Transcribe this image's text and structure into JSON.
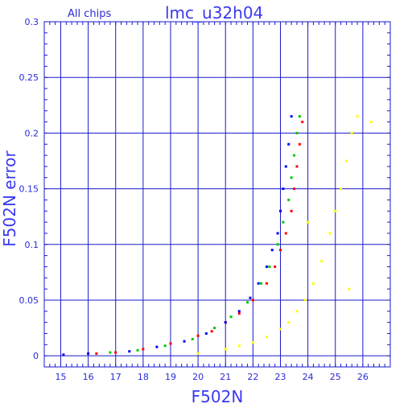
{
  "chart_data": {
    "type": "scatter",
    "title": "lmc_u32h04",
    "subtitle": "All chips",
    "xlabel": "F502N",
    "ylabel": "F502N error",
    "xlim": [
      14.4,
      27.0
    ],
    "ylim": [
      -0.01,
      0.3
    ],
    "x_ticks": [
      "15",
      "16",
      "17",
      "18",
      "19",
      "20",
      "21",
      "22",
      "23",
      "24",
      "25",
      "26"
    ],
    "y_ticks": [
      "0",
      "0.05",
      "0.1",
      "0.15",
      "0.2",
      "0.25",
      "0.3"
    ],
    "grid": true,
    "legend": "none",
    "series": [
      {
        "color": "#ff0000",
        "points": [
          [
            16.3,
            0.002
          ],
          [
            17.0,
            0.003
          ],
          [
            18.0,
            0.006
          ],
          [
            19.0,
            0.011
          ],
          [
            20.0,
            0.018
          ],
          [
            20.5,
            0.022
          ],
          [
            21.0,
            0.03
          ],
          [
            21.5,
            0.038
          ],
          [
            22.0,
            0.05
          ],
          [
            22.5,
            0.065
          ],
          [
            22.8,
            0.08
          ],
          [
            23.0,
            0.095
          ],
          [
            23.2,
            0.11
          ],
          [
            23.4,
            0.13
          ],
          [
            23.5,
            0.15
          ],
          [
            23.6,
            0.17
          ],
          [
            23.7,
            0.19
          ],
          [
            23.8,
            0.21
          ]
        ]
      },
      {
        "color": "#00c800",
        "points": [
          [
            16.8,
            0.003
          ],
          [
            17.8,
            0.005
          ],
          [
            18.8,
            0.009
          ],
          [
            19.8,
            0.015
          ],
          [
            20.6,
            0.025
          ],
          [
            21.2,
            0.035
          ],
          [
            21.8,
            0.048
          ],
          [
            22.3,
            0.065
          ],
          [
            22.6,
            0.08
          ],
          [
            22.9,
            0.1
          ],
          [
            23.1,
            0.12
          ],
          [
            23.3,
            0.14
          ],
          [
            23.4,
            0.16
          ],
          [
            23.5,
            0.18
          ],
          [
            23.6,
            0.2
          ],
          [
            23.7,
            0.215
          ]
        ]
      },
      {
        "color": "#0000ff",
        "points": [
          [
            15.1,
            0.001
          ],
          [
            16.0,
            0.002
          ],
          [
            17.5,
            0.004
          ],
          [
            18.5,
            0.008
          ],
          [
            19.5,
            0.013
          ],
          [
            20.3,
            0.02
          ],
          [
            21.0,
            0.03
          ],
          [
            21.5,
            0.04
          ],
          [
            21.9,
            0.052
          ],
          [
            22.2,
            0.065
          ],
          [
            22.5,
            0.08
          ],
          [
            22.7,
            0.095
          ],
          [
            22.9,
            0.11
          ],
          [
            23.0,
            0.13
          ],
          [
            23.1,
            0.15
          ],
          [
            23.2,
            0.17
          ],
          [
            23.3,
            0.19
          ],
          [
            23.4,
            0.215
          ]
        ]
      },
      {
        "color": "#ffff00",
        "points": [
          [
            20.0,
            0.002
          ],
          [
            21.0,
            0.006
          ],
          [
            21.5,
            0.009
          ],
          [
            22.0,
            0.012
          ],
          [
            22.5,
            0.017
          ],
          [
            23.0,
            0.024
          ],
          [
            23.3,
            0.03
          ],
          [
            23.6,
            0.04
          ],
          [
            23.9,
            0.05
          ],
          [
            24.2,
            0.065
          ],
          [
            24.5,
            0.085
          ],
          [
            24.8,
            0.11
          ],
          [
            25.0,
            0.13
          ],
          [
            25.2,
            0.15
          ],
          [
            25.4,
            0.175
          ],
          [
            25.6,
            0.2
          ],
          [
            25.8,
            0.215
          ],
          [
            25.5,
            0.06
          ],
          [
            24.0,
            0.12
          ],
          [
            26.3,
            0.21
          ]
        ]
      }
    ]
  }
}
